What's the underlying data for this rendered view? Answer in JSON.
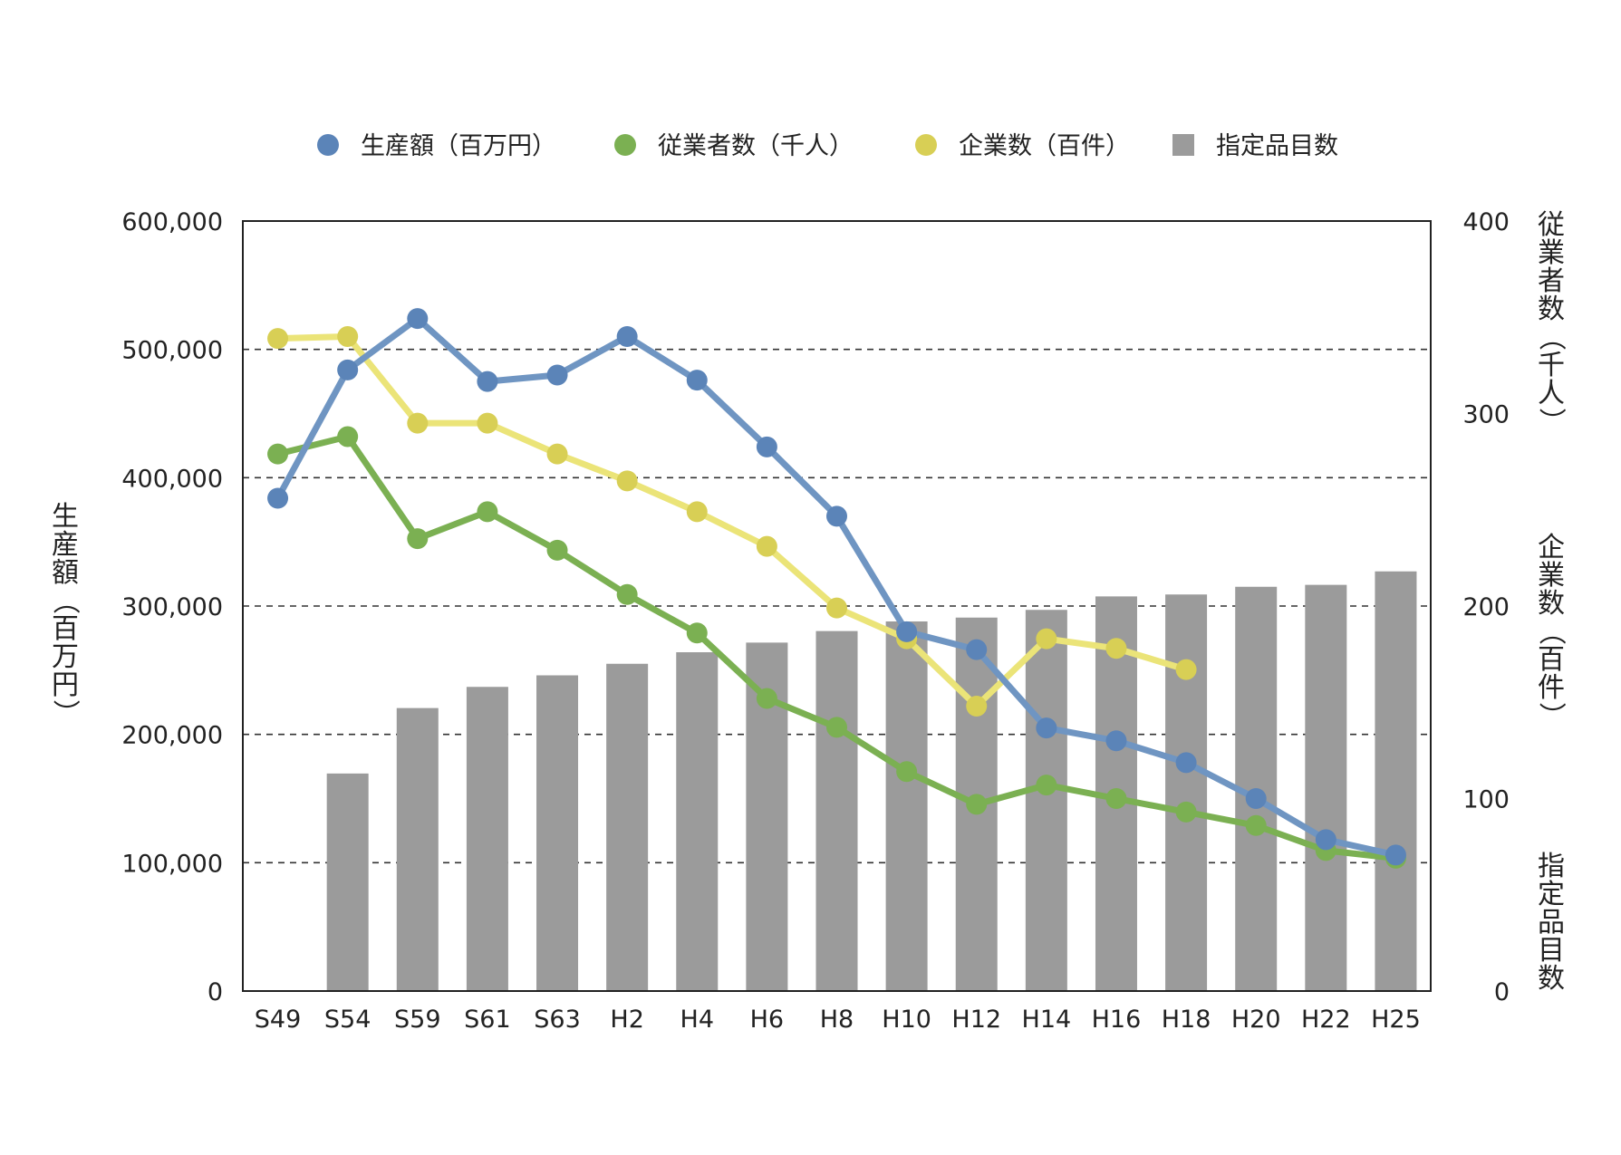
{
  "chart_data": {
    "type": "bar+line",
    "categories": [
      "S49",
      "S54",
      "S59",
      "S61",
      "S63",
      "H2",
      "H4",
      "H6",
      "H8",
      "H10",
      "H12",
      "H14",
      "H16",
      "H18",
      "H20",
      "H22",
      "H25"
    ],
    "legend": [
      {
        "label": "生産額（百万円）",
        "color": "#5b84b8",
        "marker": "circle"
      },
      {
        "label": "従業者数（千人）",
        "color": "#7bb052",
        "marker": "circle"
      },
      {
        "label": "企業数（百件）",
        "color": "#d8cf55",
        "marker": "circle"
      },
      {
        "label": "指定品目数",
        "color": "#9b9b9b",
        "marker": "square"
      }
    ],
    "axes": {
      "left": {
        "title": "生産額（百万円）",
        "min": 0,
        "max": 600000,
        "ticks": [
          "0",
          "100,000",
          "200,000",
          "300,000",
          "400,000",
          "500,000",
          "600,000"
        ]
      },
      "right": {
        "titles": [
          "従業者数（千人）",
          "企業数（百件）",
          "指定品目数"
        ],
        "min": 0,
        "max": 400,
        "ticks": [
          "0",
          "100",
          "200",
          "300",
          "400"
        ]
      }
    },
    "grid": "horizontal dashed",
    "legend_position": "top",
    "series": [
      {
        "name": "指定品目数",
        "type": "bar",
        "axis": "right",
        "color": "#9b9b9b",
        "values": [
          null,
          113,
          147,
          158,
          164,
          170,
          176,
          181,
          187,
          192,
          194,
          198,
          205,
          206,
          210,
          211,
          218
        ]
      },
      {
        "name": "企業数（百件）",
        "type": "line",
        "axis": "right",
        "color": "#d8cf55",
        "line_color": "#ebe478",
        "values": [
          339,
          340,
          295,
          295,
          279,
          265,
          249,
          231,
          199,
          183,
          148,
          183,
          178,
          167,
          null,
          null,
          null
        ]
      },
      {
        "name": "従業者数（千人）",
        "type": "line",
        "axis": "right",
        "color": "#7bb052",
        "values": [
          279,
          288,
          235,
          249,
          229,
          206,
          186,
          152,
          137,
          114,
          97,
          107,
          100,
          93,
          86,
          73,
          69
        ]
      },
      {
        "name": "生産額（百万円）",
        "type": "line",
        "axis": "left",
        "color": "#5b84b8",
        "line_color": "#6f95c2",
        "values": [
          384000,
          484000,
          524000,
          475000,
          480000,
          510000,
          476000,
          424000,
          370000,
          280000,
          266000,
          205000,
          195000,
          178000,
          150000,
          118000,
          106000
        ]
      }
    ]
  }
}
